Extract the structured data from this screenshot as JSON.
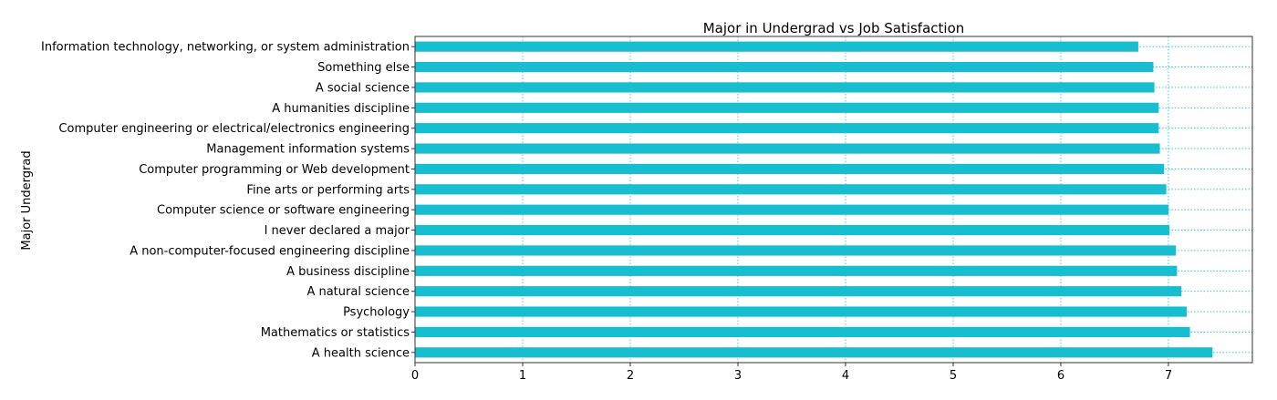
{
  "chart_data": {
    "type": "bar",
    "orientation": "horizontal",
    "title": "Major in Undergrad vs Job Satisfaction",
    "ylabel": "Major Undergrad",
    "xlabel": "",
    "xlim": [
      0,
      7.78
    ],
    "xticks": [
      0,
      1,
      2,
      3,
      4,
      5,
      6,
      7
    ],
    "grid": true,
    "color": "#17becf",
    "categories": [
      "Information technology, networking, or system administration",
      "Something else",
      "A social science",
      "A humanities discipline",
      "Computer engineering or electrical/electronics engineering",
      "Management information systems",
      "Computer programming or Web development",
      "Fine arts or performing arts",
      "Computer science or software engineering",
      "I never declared a major",
      "A non-computer-focused engineering discipline",
      "A business discipline",
      "A natural science",
      "Psychology",
      "Mathematics or statistics",
      "A health science"
    ],
    "values": [
      6.72,
      6.86,
      6.87,
      6.91,
      6.91,
      6.92,
      6.96,
      6.98,
      7.0,
      7.01,
      7.07,
      7.08,
      7.12,
      7.17,
      7.2,
      7.41
    ]
  }
}
